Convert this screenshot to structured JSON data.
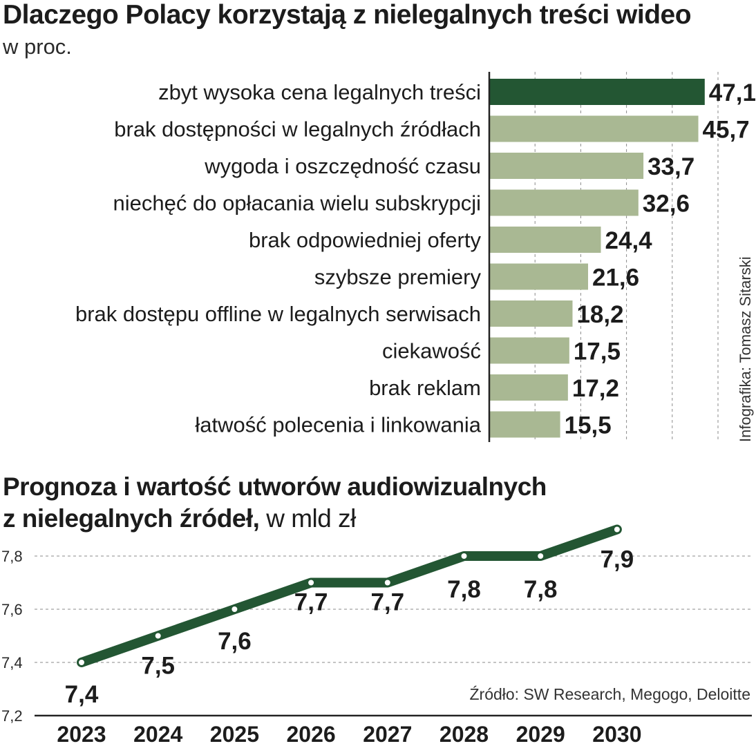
{
  "chart_data": [
    {
      "type": "bar",
      "title": "Dlaczego Polacy korzystają z nielegalnych treści wideo",
      "subtitle": "w proc.",
      "categories": [
        "zbyt wysoka cena legalnych treści",
        "brak dostępności w legalnych źródłach",
        "wygoda i oszczędność czasu",
        "niechęć do opłacania wielu subskrypcji",
        "brak odpowiedniej oferty",
        "szybsze premiery",
        "brak dostępu offline w legalnych serwisach",
        "ciekawość",
        "brak reklam",
        "łatwość polecenia i linkowania"
      ],
      "values": [
        47.1,
        45.7,
        33.7,
        32.6,
        24.4,
        21.6,
        18.2,
        17.5,
        17.2,
        15.5
      ],
      "value_labels": [
        "47,1",
        "45,7",
        "33,7",
        "32,6",
        "24,4",
        "21,6",
        "18,2",
        "17,5",
        "17,2",
        "15,5"
      ],
      "highlight_color": "#235633",
      "bar_color": "#a9b893",
      "orientation": "horizontal",
      "grid": true
    },
    {
      "type": "line",
      "title": "Prognoza i wartość utworów audiowizualnych z nielegalnych źródeł,",
      "title_line1": "Prognoza i wartość utworów audiowizualnych",
      "title_line2": "z nielegalnych źródeł,",
      "subtitle": "w mld zł",
      "x": [
        "2023",
        "2024",
        "2025",
        "2026",
        "2027",
        "2028",
        "2029",
        "2030"
      ],
      "values": [
        7.4,
        7.5,
        7.6,
        7.7,
        7.7,
        7.8,
        7.8,
        7.9
      ],
      "value_labels": [
        "7,4",
        "7,5",
        "7,6",
        "7,7",
        "7,7",
        "7,8",
        "7,8",
        "7,9"
      ],
      "yticks": [
        "7,2",
        "7,4",
        "7,6",
        "7,8"
      ],
      "ytick_values": [
        7.2,
        7.4,
        7.6,
        7.8
      ],
      "ylim": [
        7.2,
        7.9
      ],
      "line_color": "#235633",
      "grid": true
    }
  ],
  "credit": "Infografika: Tomasz Sitarski",
  "source": "Źródło: SW Research, Megogo, Deloitte"
}
